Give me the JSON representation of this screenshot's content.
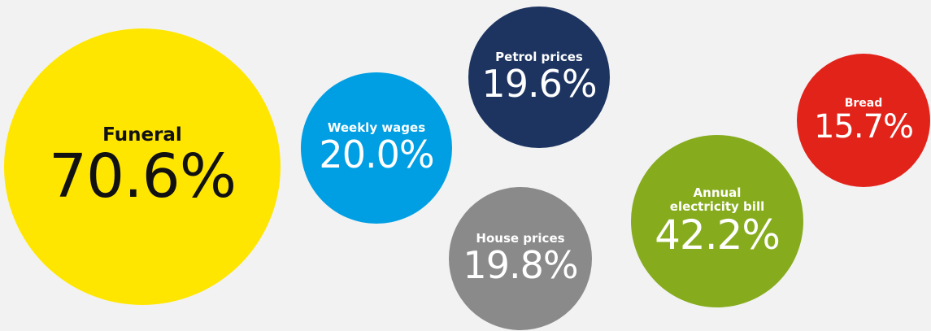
{
  "chart_data": {
    "type": "bubble",
    "categories": [
      "Funeral",
      "Weekly wages",
      "Petrol prices",
      "House prices",
      "Annual electricity bill",
      "Bread"
    ],
    "values": [
      70.6,
      20.0,
      19.6,
      19.8,
      42.2,
      15.7
    ],
    "value_labels": [
      "70.6%",
      "20.0%",
      "19.6%",
      "19.8%",
      "42.2%",
      "15.7%"
    ],
    "colors": [
      "#ffe600",
      "#009fe3",
      "#1d3461",
      "#8a8a8a",
      "#86ac1e",
      "#e2231a"
    ]
  }
}
